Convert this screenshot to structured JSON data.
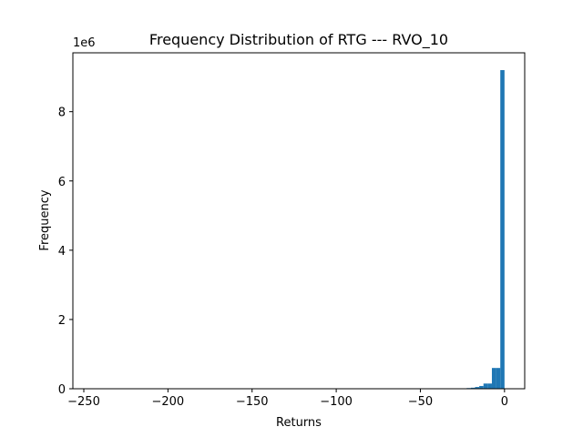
{
  "chart_data": {
    "type": "bar",
    "title": "Frequency Distribution of RTG --- RVO_10",
    "xlabel": "Returns",
    "ylabel": "Frequency",
    "y_multiplier_label": "1e6",
    "xlim": [
      -256.5,
      12
    ],
    "ylim": [
      0,
      9.7
    ],
    "x_ticks": [
      -250,
      -200,
      -150,
      -100,
      -50,
      0
    ],
    "x_tick_labels": [
      "−250",
      "−200",
      "−150",
      "−100",
      "−50",
      "0"
    ],
    "y_ticks": [
      0,
      2,
      4,
      6,
      8
    ],
    "y_tick_labels": [
      "0",
      "2",
      "4",
      "6",
      "8"
    ],
    "bar_color": "#1f77b4",
    "bins": [
      {
        "x0": -45.0,
        "x1": -42.5,
        "value": 0.01
      },
      {
        "x0": -42.5,
        "x1": -40.0,
        "value": 0.01
      },
      {
        "x0": -40.0,
        "x1": -37.5,
        "value": 0.01
      },
      {
        "x0": -37.5,
        "x1": -35.0,
        "value": 0.01
      },
      {
        "x0": -35.0,
        "x1": -32.5,
        "value": 0.01
      },
      {
        "x0": -32.5,
        "x1": -30.0,
        "value": 0.01
      },
      {
        "x0": -30.0,
        "x1": -27.5,
        "value": 0.01
      },
      {
        "x0": -27.5,
        "x1": -25.0,
        "value": 0.01
      },
      {
        "x0": -25.0,
        "x1": -22.5,
        "value": 0.01
      },
      {
        "x0": -22.5,
        "x1": -20.0,
        "value": 0.02
      },
      {
        "x0": -20.0,
        "x1": -17.5,
        "value": 0.03
      },
      {
        "x0": -17.5,
        "x1": -15.0,
        "value": 0.05
      },
      {
        "x0": -15.0,
        "x1": -12.5,
        "value": 0.08
      },
      {
        "x0": -12.5,
        "x1": -10.0,
        "value": 0.15
      },
      {
        "x0": -10.0,
        "x1": -7.5,
        "value": 0.15
      },
      {
        "x0": -7.5,
        "x1": -5.0,
        "value": 0.6
      },
      {
        "x0": -5.0,
        "x1": -2.5,
        "value": 0.6
      },
      {
        "x0": -2.5,
        "x1": 0.0,
        "value": 9.2
      }
    ]
  }
}
